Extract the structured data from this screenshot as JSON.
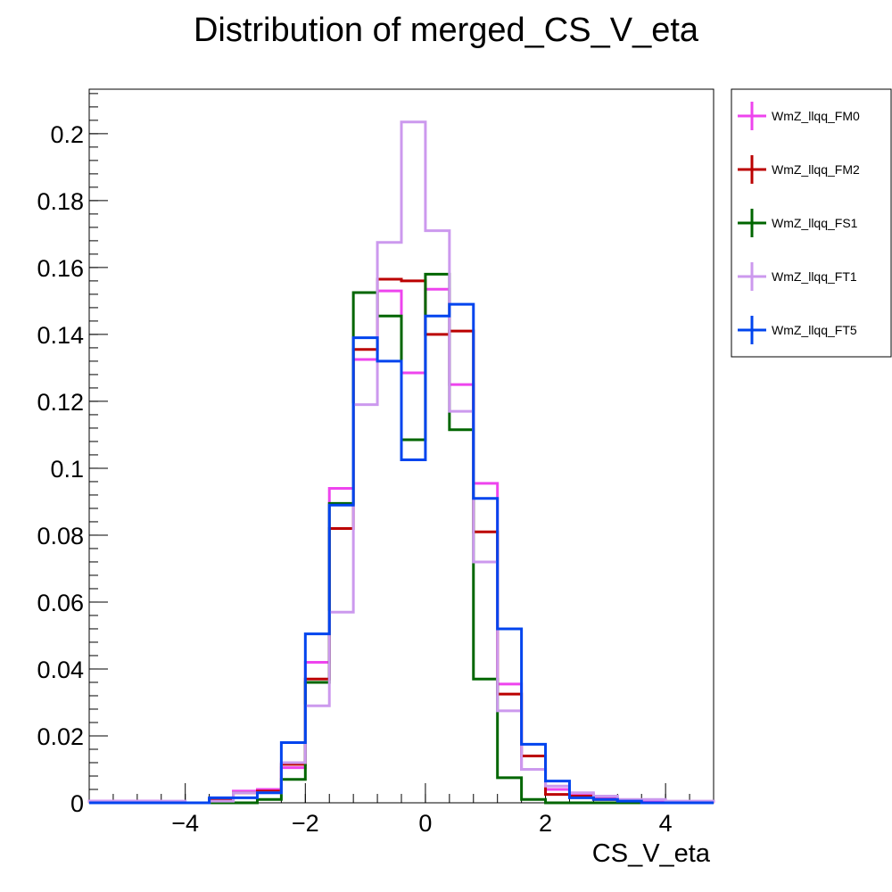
{
  "chart_data": {
    "type": "line",
    "title": "Distribution of merged_CS_V_eta",
    "xlabel": "CS_V_eta",
    "ylabel": "",
    "xlim": [
      -5.6,
      4.8
    ],
    "ylim": [
      0,
      0.2133
    ],
    "x_ticks": [
      -4,
      -2,
      0,
      2,
      4
    ],
    "x_tick_labels": [
      "−4",
      "−2",
      "0",
      "2",
      "4"
    ],
    "y_ticks": [
      0,
      0.02,
      0.04,
      0.06,
      0.08,
      0.1,
      0.12,
      0.14,
      0.16,
      0.18,
      0.2
    ],
    "y_tick_labels": [
      "0",
      "0.02",
      "0.04",
      "0.06",
      "0.08",
      "0.1",
      "0.12",
      "0.14",
      "0.16",
      "0.18",
      "0.2"
    ],
    "bin_edges": [
      -5.6,
      -5.2,
      -4.8,
      -4.4,
      -4.0,
      -3.6,
      -3.2,
      -2.8,
      -2.4,
      -2.0,
      -1.6,
      -1.2,
      -0.8,
      -0.4,
      0.0,
      0.4,
      0.8,
      1.2,
      1.6,
      2.0,
      2.4,
      2.8,
      3.2,
      3.6,
      4.0,
      4.4,
      4.8
    ],
    "legend_position": "right",
    "series": [
      {
        "name": "WmZ_llqq_FM0",
        "color": "#ee44ee",
        "values": [
          0.0005,
          0.0005,
          0.0005,
          0,
          0,
          0.001,
          0.0035,
          0.004,
          0.0105,
          0.042,
          0.094,
          0.1325,
          0.153,
          0.1285,
          0.1535,
          0.125,
          0.0955,
          0.0355,
          0.01,
          0.004,
          0.0025,
          0.0015,
          0.0005,
          0.0005,
          0,
          0
        ]
      },
      {
        "name": "WmZ_llqq_FM2",
        "color": "#bb0000",
        "values": [
          0,
          0,
          0,
          0,
          0,
          0.001,
          0.003,
          0.0035,
          0.0115,
          0.037,
          0.082,
          0.1355,
          0.1565,
          0.156,
          0.14,
          0.141,
          0.081,
          0.0325,
          0.014,
          0.0025,
          0.002,
          0.001,
          0,
          0,
          0,
          0
        ]
      },
      {
        "name": "WmZ_llqq_FS1",
        "color": "#006600",
        "values": [
          0,
          0,
          0,
          0,
          0,
          0,
          0,
          0.001,
          0.007,
          0.036,
          0.0895,
          0.1525,
          0.1455,
          0.1085,
          0.158,
          0.1115,
          0.037,
          0.0075,
          0.001,
          0,
          0,
          0,
          0,
          0,
          0,
          0
        ]
      },
      {
        "name": "WmZ_llqq_FT1",
        "color": "#cc99ee",
        "values": [
          0.0005,
          0.0005,
          0.0005,
          0.0005,
          0,
          0.0005,
          0.003,
          0.003,
          0.012,
          0.029,
          0.057,
          0.119,
          0.1675,
          0.2035,
          0.171,
          0.117,
          0.072,
          0.0275,
          0.01,
          0.005,
          0.003,
          0.002,
          0.001,
          0.001,
          0.0005,
          0.0005
        ]
      },
      {
        "name": "WmZ_llqq_FT5",
        "color": "#0044ee",
        "values": [
          0,
          0,
          0,
          0,
          0,
          0.0015,
          0.0015,
          0.003,
          0.018,
          0.0505,
          0.089,
          0.139,
          0.132,
          0.1025,
          0.1455,
          0.149,
          0.091,
          0.052,
          0.0175,
          0.0065,
          0.0015,
          0.001,
          0.0005,
          0,
          0,
          0
        ]
      }
    ]
  }
}
